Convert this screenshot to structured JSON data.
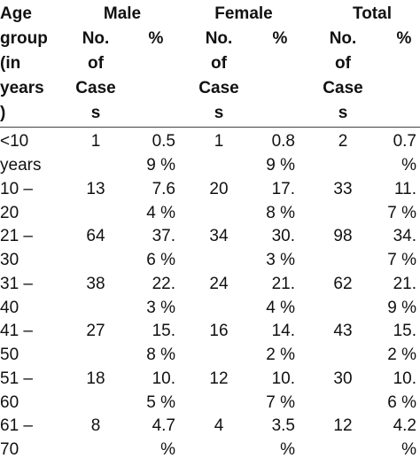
{
  "table": {
    "group_headers": {
      "age_group": [
        "Age",
        "group",
        "(in",
        "years",
        ")"
      ],
      "male": "Male",
      "female": "Female",
      "total": "Total"
    },
    "sub_headers": {
      "cases": [
        "No.",
        "of",
        "Case",
        "s"
      ],
      "percent": "%"
    },
    "rows": [
      {
        "age": [
          "<10",
          "years"
        ],
        "male_cases": "1",
        "male_pct": [
          "0.5",
          "9 %"
        ],
        "female_cases": "1",
        "female_pct": [
          "0.8",
          "9 %"
        ],
        "total_cases": "2",
        "total_pct": [
          "0.7",
          "%"
        ]
      },
      {
        "age": [
          "10 –",
          "20"
        ],
        "male_cases": "13",
        "male_pct": [
          "7.6",
          "4 %"
        ],
        "female_cases": "20",
        "female_pct": [
          "17.",
          "8 %"
        ],
        "total_cases": "33",
        "total_pct": [
          "11.",
          "7 %"
        ]
      },
      {
        "age": [
          "21 –",
          "30"
        ],
        "male_cases": "64",
        "male_pct": [
          "37.",
          "6 %"
        ],
        "female_cases": "34",
        "female_pct": [
          "30.",
          "3 %"
        ],
        "total_cases": "98",
        "total_pct": [
          "34.",
          "7 %"
        ]
      },
      {
        "age": [
          "31 –",
          "40"
        ],
        "male_cases": "38",
        "male_pct": [
          "22.",
          "3 %"
        ],
        "female_cases": "24",
        "female_pct": [
          "21.",
          "4 %"
        ],
        "total_cases": "62",
        "total_pct": [
          "21.",
          "9 %"
        ]
      },
      {
        "age": [
          "41 –",
          "50"
        ],
        "male_cases": "27",
        "male_pct": [
          "15.",
          "8 %"
        ],
        "female_cases": "16",
        "female_pct": [
          "14.",
          "2 %"
        ],
        "total_cases": "43",
        "total_pct": [
          "15.",
          "2 %"
        ]
      },
      {
        "age": [
          "51 –",
          "60"
        ],
        "male_cases": "18",
        "male_pct": [
          "10.",
          "5 %"
        ],
        "female_cases": "12",
        "female_pct": [
          "10.",
          "7 %"
        ],
        "total_cases": "30",
        "total_pct": [
          "10.",
          "6 %"
        ]
      },
      {
        "age": [
          "61 –",
          "70"
        ],
        "male_cases": "8",
        "male_pct": [
          "4.7",
          "%"
        ],
        "female_cases": "4",
        "female_pct": [
          "3.5",
          "%"
        ],
        "total_cases": "12",
        "total_pct": [
          "4.2",
          "%"
        ]
      }
    ]
  }
}
